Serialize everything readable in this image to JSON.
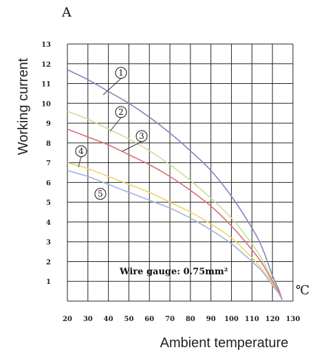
{
  "chart_data": {
    "type": "line",
    "ylabel": "Working current",
    "xlabel": "Ambient temperature",
    "y_unit": "A",
    "x_unit": "℃",
    "xlim": [
      20,
      130
    ],
    "ylim": [
      0,
      13
    ],
    "x_ticks": [
      "20",
      "30",
      "40",
      "50",
      "60",
      "70",
      "80",
      "90",
      "100",
      "110",
      "120",
      "130"
    ],
    "y_ticks": [
      "1",
      "2",
      "3",
      "4",
      "5",
      "6",
      "7",
      "8",
      "9",
      "10",
      "11",
      "12",
      "13"
    ],
    "grid": true,
    "annotation": "Wire gauge: 0.75mm²",
    "series": [
      {
        "name": "1",
        "color": "#7f86bd",
        "x": [
          20,
          30,
          40,
          50,
          60,
          70,
          80,
          90,
          100,
          110,
          115,
          120,
          123,
          125
        ],
        "y": [
          11.7,
          11.2,
          10.6,
          10.0,
          9.3,
          8.5,
          7.6,
          6.6,
          5.3,
          3.7,
          2.7,
          1.3,
          0.6,
          0
        ]
      },
      {
        "name": "2",
        "color": "#c8de98",
        "x": [
          20,
          30,
          40,
          50,
          60,
          70,
          80,
          90,
          100,
          110,
          115,
          120,
          123,
          125
        ],
        "y": [
          9.6,
          9.2,
          8.7,
          8.2,
          7.6,
          6.9,
          6.1,
          5.2,
          4.2,
          2.9,
          2.1,
          1.1,
          0.5,
          0
        ]
      },
      {
        "name": "3",
        "color": "#dd6b78",
        "x": [
          20,
          30,
          40,
          50,
          60,
          70,
          80,
          90,
          100,
          110,
          115,
          120,
          123,
          125
        ],
        "y": [
          8.7,
          8.3,
          7.9,
          7.4,
          6.9,
          6.3,
          5.6,
          4.8,
          3.8,
          2.6,
          1.9,
          1.0,
          0.5,
          0
        ]
      },
      {
        "name": "4",
        "color": "#eed36d",
        "x": [
          20,
          30,
          40,
          50,
          60,
          70,
          80,
          90,
          100,
          110,
          115,
          120,
          123,
          125
        ],
        "y": [
          7.0,
          6.7,
          6.3,
          5.9,
          5.5,
          5.0,
          4.5,
          3.9,
          3.2,
          2.2,
          1.6,
          0.9,
          0.4,
          0
        ]
      },
      {
        "name": "5",
        "color": "#a3b0d9",
        "x": [
          20,
          30,
          40,
          50,
          60,
          70,
          80,
          90,
          100,
          110,
          115,
          120,
          123,
          125
        ],
        "y": [
          6.6,
          6.3,
          5.9,
          5.5,
          5.1,
          4.7,
          4.2,
          3.6,
          2.9,
          2.0,
          1.5,
          0.8,
          0.4,
          0
        ]
      }
    ]
  }
}
